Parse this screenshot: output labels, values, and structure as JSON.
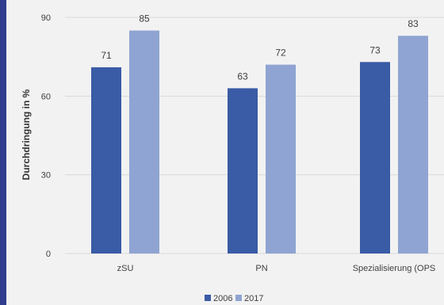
{
  "chart_data": {
    "type": "bar",
    "title": "",
    "xlabel": "",
    "ylabel": "Durchdringung in %",
    "ylim": [
      0,
      90
    ],
    "yticks": [
      0,
      30,
      60,
      90
    ],
    "grid": true,
    "legend_position": "bottom-center",
    "categories": [
      "zSU",
      "PN",
      "Spezialisierung (OPS"
    ],
    "series": [
      {
        "name": "2006",
        "values": [
          71,
          63,
          73
        ],
        "color": "#3a5ba5"
      },
      {
        "name": "2017",
        "values": [
          85,
          72,
          83
        ],
        "color": "#8fa4d2"
      }
    ]
  },
  "colors": {
    "frame_background": "#f2f2f2",
    "left_accent": "#2f3d8c",
    "gridline": "#d9d9d9"
  }
}
